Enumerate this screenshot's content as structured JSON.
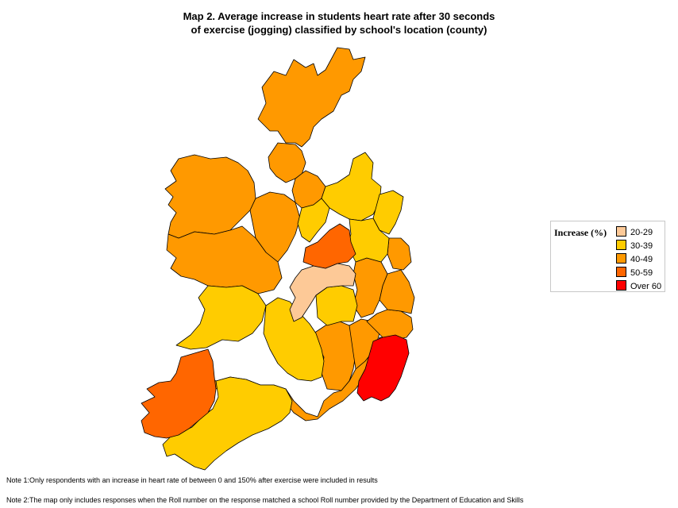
{
  "title": {
    "line1": "Map 2. Average increase in students heart rate after 30 seconds",
    "line2": "of exercise (jogging) classified by school's location (county)"
  },
  "legend": {
    "title": "Increase (%)",
    "items": [
      {
        "label": "20-29",
        "color": "#fdc997"
      },
      {
        "label": "30-39",
        "color": "#ffcc00"
      },
      {
        "label": "40-49",
        "color": "#ff9900"
      },
      {
        "label": "50-59",
        "color": "#ff6600"
      },
      {
        "label": "Over 60",
        "color": "#ff0000"
      }
    ]
  },
  "notes": {
    "note1": "Note 1:Only respondents with an increase in heart rate of between 0 and 150% after exercise were included in results",
    "note2": "Note 2:The map only includes responses when the Roll number on the response matched a school Roll number provided by the Department of Education and Skills"
  }
}
